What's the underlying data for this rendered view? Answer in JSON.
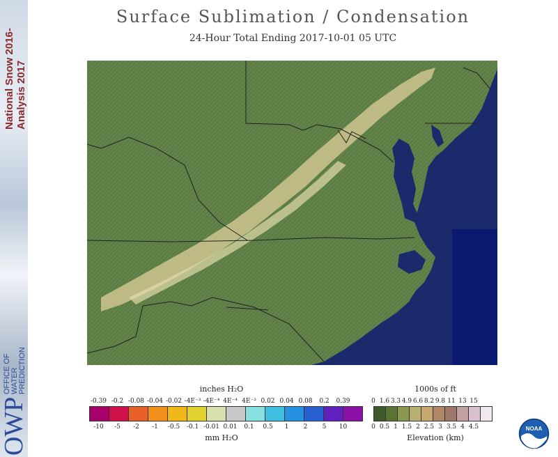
{
  "sidebar": {
    "vertical_line1": "National Snow 2016-",
    "vertical_line2": "Analysis 2017",
    "org_line1": "OFFICE OF",
    "org_line2": "WATER",
    "org_line3": "PREDICTION",
    "logo_text": "OWP"
  },
  "header": {
    "title": "Surface Sublimation / Condensation",
    "subtitle": "24-Hour Total Ending 2017-10-01 05 UTC"
  },
  "legend_left": {
    "title_top": "inches H₂O",
    "title_bottom": "mm H₂O",
    "top_ticks": [
      "-0.39",
      "-0.2",
      "-0.08",
      "-0.04",
      "-0.02",
      "-4E⁻³",
      "-4E⁻⁴",
      "4E⁻⁴",
      "4E⁻³",
      "0.02",
      "0.04",
      "0.08",
      "0.2",
      "0.39"
    ],
    "bottom_ticks": [
      "-10",
      "-5",
      "-2",
      "-1",
      "-0.5",
      "-0.1",
      "-0.01",
      "0.01",
      "0.1",
      "0.5",
      "1",
      "2",
      "5",
      "10"
    ],
    "colors": [
      "#a8006a",
      "#d0104a",
      "#e8602a",
      "#f0901a",
      "#f0b818",
      "#e0d030",
      "#d8e0b0",
      "#c8c8c8",
      "#88e0e0",
      "#40c0e0",
      "#2890e0",
      "#2860d0",
      "#6020c0",
      "#8a10a8"
    ]
  },
  "legend_right": {
    "title_top": "1000s of ft",
    "title_bottom": "Elevation (km)",
    "top_ticks": [
      "0",
      "1.6",
      "3.3",
      "4.9",
      "6.6",
      "8.2",
      "9.8",
      "11",
      "13",
      "15"
    ],
    "bottom_ticks": [
      "0",
      "0.5",
      "1",
      "1.5",
      "2",
      "2.5",
      "3",
      "3.5",
      "4",
      "4.5"
    ],
    "colors": [
      "#3f5a2a",
      "#5a7234",
      "#8a9850",
      "#b8b070",
      "#c8a870",
      "#b08868",
      "#a07868",
      "#c0a0a0",
      "#d8c0d0",
      "#f0e8f0"
    ]
  },
  "map": {
    "land_color": "#5f7f45",
    "ocean_color": "#1a2a6a",
    "deep_ocean_color": "#0a1a70",
    "ridge_color": "#d8d09a",
    "border_color": "#202020"
  },
  "noaa": {
    "label": "NOAA"
  }
}
